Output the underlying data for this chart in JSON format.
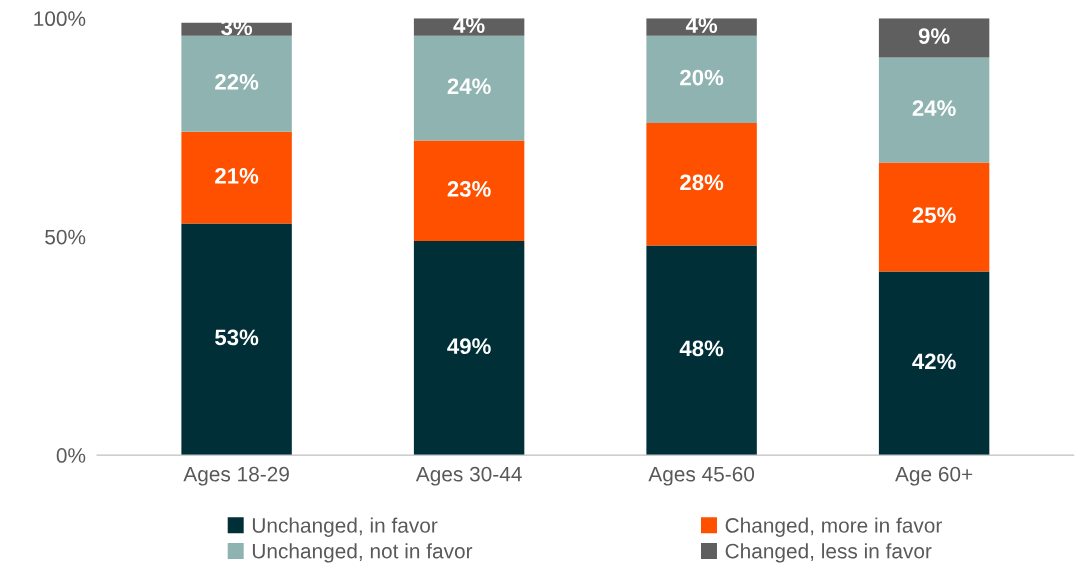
{
  "chart_data": {
    "type": "bar",
    "stacked": true,
    "categories": [
      "Ages 18-29",
      "Ages 30-44",
      "Ages 45-60",
      "Age 60+"
    ],
    "series": [
      {
        "name": "Unchanged, in favor",
        "color": "#002f37",
        "values": [
          53,
          49,
          48,
          42
        ],
        "value_labels": [
          "53%",
          "49%",
          "48%",
          "42%"
        ]
      },
      {
        "name": "Changed, more in favor",
        "color": "#ff5000",
        "values": [
          21,
          23,
          28,
          25
        ],
        "value_labels": [
          "21%",
          "23%",
          "28%",
          "25%"
        ]
      },
      {
        "name": "Unchanged, not in favor",
        "color": "#8fb3b1",
        "values": [
          22,
          24,
          20,
          24
        ],
        "value_labels": [
          "22%",
          "24%",
          "20%",
          "24%"
        ]
      },
      {
        "name": "Changed, less in favor",
        "color": "#5f5f5f",
        "values": [
          3,
          4,
          4,
          9
        ],
        "value_labels": [
          "3%",
          "4%",
          "4%",
          "9%"
        ]
      }
    ],
    "ylim": [
      0,
      100
    ],
    "yticks": [
      {
        "value": 0,
        "label": "0%"
      },
      {
        "value": 50,
        "label": "50%"
      },
      {
        "value": 100,
        "label": "100%"
      }
    ],
    "grid": false,
    "legend": "bottom"
  }
}
